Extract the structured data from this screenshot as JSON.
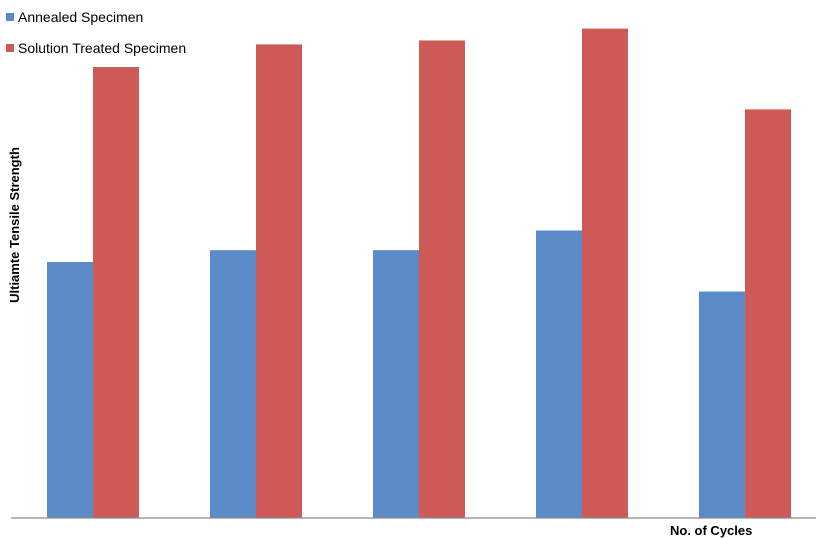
{
  "chart_data": {
    "type": "bar",
    "categories": [
      "",
      "",
      "",
      "",
      ""
    ],
    "series": [
      {
        "name": "Annealed Specimen",
        "color": "#5b8bc9",
        "values": [
          260,
          272,
          272,
          292,
          230
        ]
      },
      {
        "name": "Solution Treated Specimen",
        "color": "#cd5a56",
        "values": [
          458,
          481,
          485,
          497,
          415
        ]
      }
    ],
    "title": "",
    "xlabel": "No. of Cycles",
    "ylabel": "Ultiamte Tensile Strength",
    "ylim": [
      0,
      520
    ],
    "grid": false,
    "legend_position": "top-left"
  }
}
